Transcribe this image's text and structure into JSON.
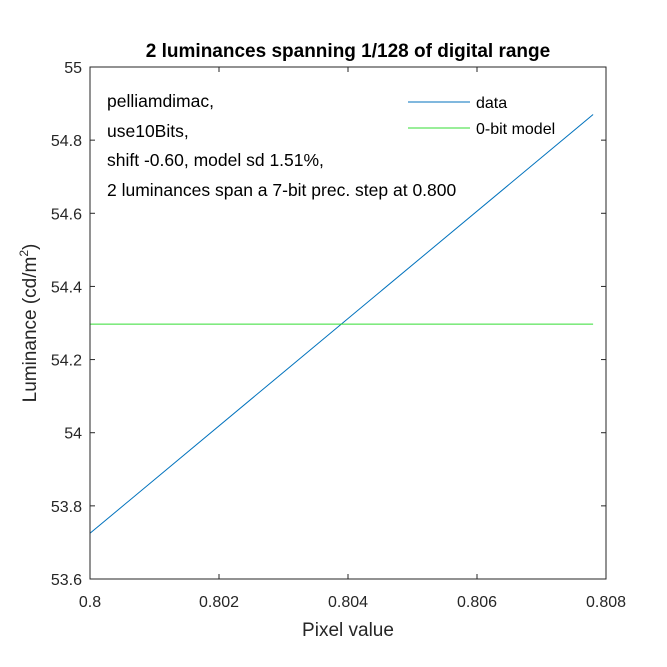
{
  "chart_data": {
    "type": "line",
    "title": "2 luminances spanning 1/128 of digital range",
    "xlabel": "Pixel value",
    "ylabel": "Luminance (cd/m",
    "ylabel_sup": "2",
    "ylabel_end": ")",
    "xlim": [
      0.8,
      0.808
    ],
    "ylim": [
      53.6,
      55
    ],
    "xticks": [
      0.8,
      0.802,
      0.804,
      0.806,
      0.808
    ],
    "xtick_labels": [
      "0.8",
      "0.802",
      "0.804",
      "0.806",
      "0.808"
    ],
    "yticks": [
      53.6,
      53.8,
      54,
      54.2,
      54.4,
      54.6,
      54.8,
      55
    ],
    "ytick_labels": [
      "53.6",
      "53.8",
      "54",
      "54.2",
      "54.4",
      "54.6",
      "54.8",
      "55"
    ],
    "grid": false,
    "legend_position": "top-right",
    "annotations": [
      "pelliamdimac,",
      "use10Bits,",
      "shift -0.60, model sd 1.51%,",
      "2 luminances span a 7-bit prec. step at 0.800"
    ],
    "series": [
      {
        "name": "data",
        "color": "#0072BD",
        "x": [
          0.8,
          0.8078
        ],
        "y": [
          53.725,
          54.87
        ]
      },
      {
        "name": "0-bit model",
        "color": "#33DD33",
        "x": [
          0.8,
          0.8078
        ],
        "y": [
          54.297,
          54.297
        ]
      }
    ]
  }
}
